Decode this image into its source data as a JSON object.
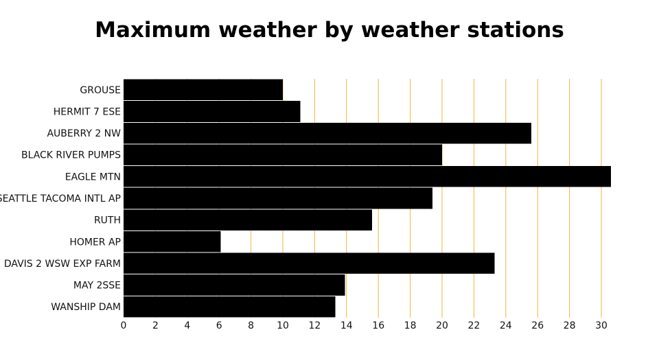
{
  "chart_data": {
    "type": "bar",
    "orientation": "horizontal",
    "title": "Maximum weather by weather stations",
    "xlabel": "",
    "ylabel": "",
    "categories": [
      "GROUSE",
      "HERMIT 7 ESE",
      "AUBERRY 2 NW",
      "BLACK RIVER PUMPS",
      "EAGLE MTN",
      "SEATTLE TACOMA INTL AP",
      "RUTH",
      "HOMER AP",
      "DAVIS 2 WSW EXP FARM",
      "MAY 2SSE",
      "WANSHIP DAM"
    ],
    "values": [
      10,
      11.1,
      25.6,
      20,
      30.6,
      19.4,
      15.6,
      6.1,
      23.3,
      13.9,
      13.3
    ],
    "xlim": [
      0,
      31
    ],
    "xticks": [
      0,
      2,
      4,
      6,
      8,
      10,
      12,
      14,
      16,
      18,
      20,
      22,
      24,
      26,
      28,
      30
    ],
    "grid": "vertical",
    "legend": "none"
  },
  "colors": {
    "bar": "#000000",
    "grid": "#f0b43c",
    "background": "#ffffff",
    "text": "#111111"
  }
}
